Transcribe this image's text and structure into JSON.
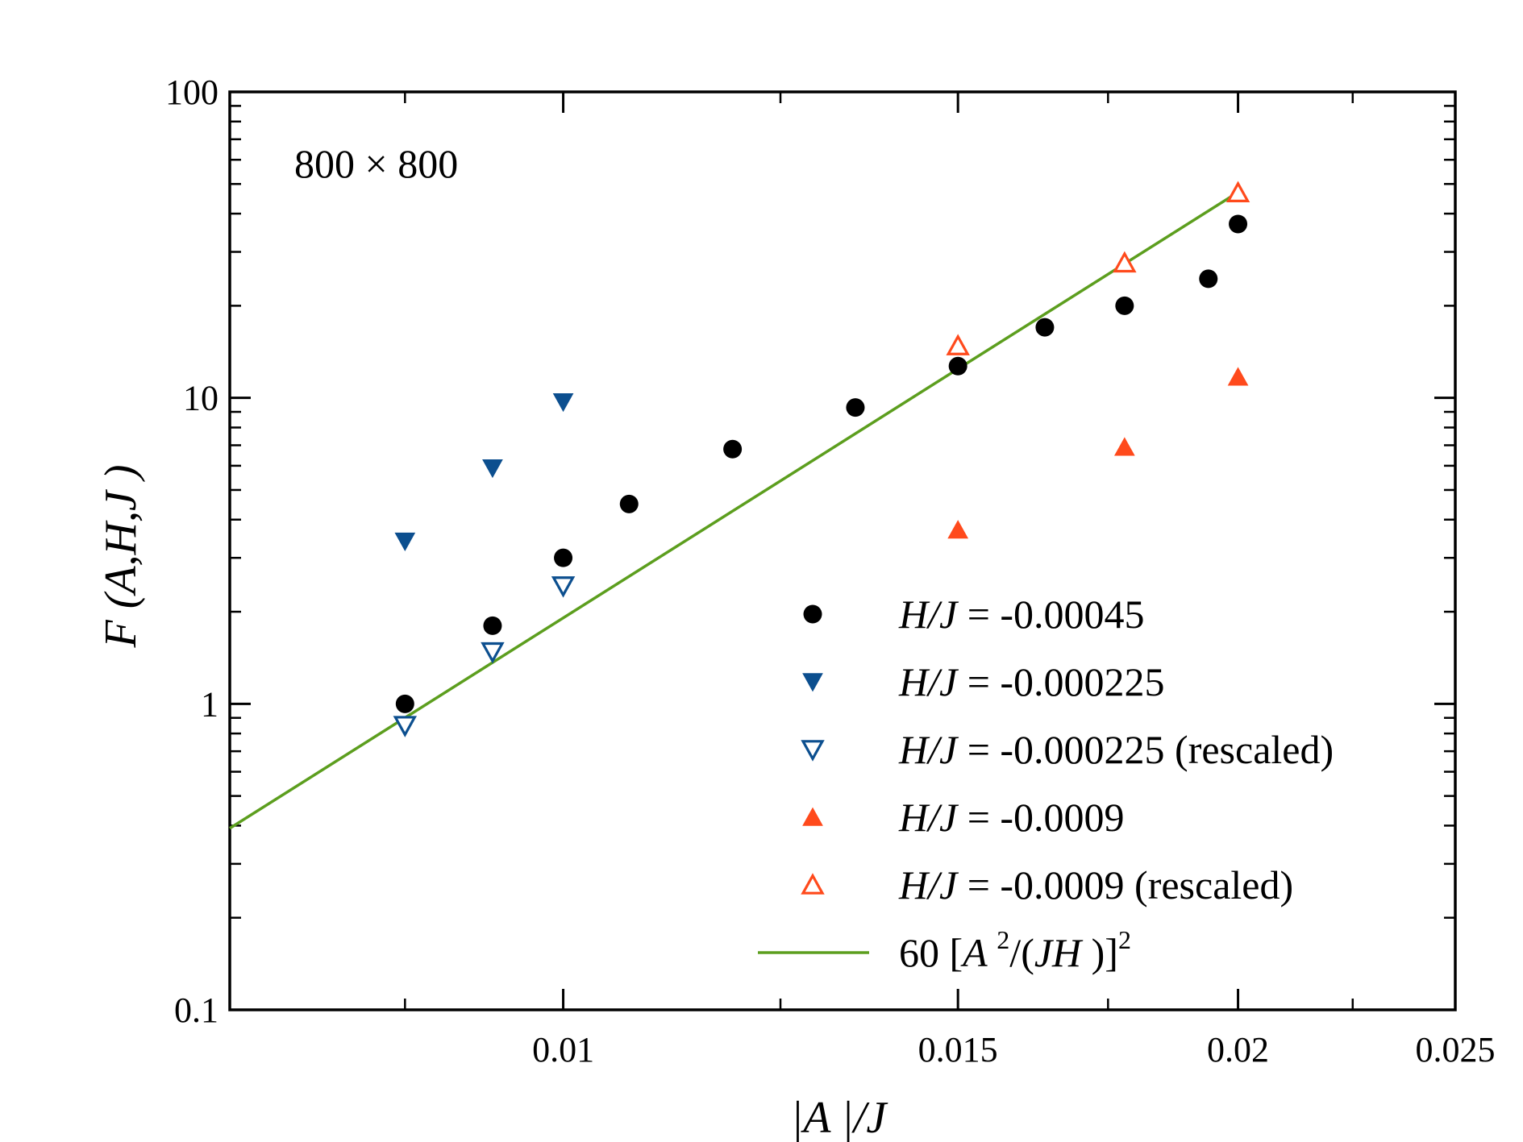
{
  "chart_data": {
    "type": "scatter",
    "title": "",
    "annotation": "800 × 800",
    "xlabel": "|A |/J",
    "ylabel": "F (A,H,J )",
    "xscale": "log",
    "yscale": "log",
    "xlim": [
      0.0071,
      0.025
    ],
    "ylim": [
      0.1,
      100
    ],
    "x_ticks": [
      {
        "value": 0.01,
        "label": "0.01"
      },
      {
        "value": 0.015,
        "label": "0.015"
      },
      {
        "value": 0.02,
        "label": "0.02"
      },
      {
        "value": 0.025,
        "label": "0.025"
      }
    ],
    "y_ticks": [
      {
        "value": 0.1,
        "label": "0.1"
      },
      {
        "value": 1,
        "label": "1"
      },
      {
        "value": 10,
        "label": "10"
      },
      {
        "value": 100,
        "label": "100"
      }
    ],
    "legend_position": "lower-right",
    "series": [
      {
        "name": "H/J = -0.00045",
        "label_italic": "H/J",
        "label_rest": " = -0.00045",
        "marker": "circle-filled",
        "color": "#000000",
        "x": [
          0.0085,
          0.0093,
          0.01,
          0.0107,
          0.0119,
          0.0135,
          0.015,
          0.0164,
          0.0178,
          0.0194,
          0.02
        ],
        "y": [
          1.0,
          1.8,
          3.0,
          4.5,
          6.8,
          9.3,
          12.7,
          17.0,
          20.0,
          24.5,
          37.0
        ]
      },
      {
        "name": "H/J = -0.000225",
        "label_italic": "H/J",
        "label_rest": " = -0.000225",
        "marker": "triangle-down-filled",
        "color": "#0c4f8f",
        "x": [
          0.0085,
          0.0093,
          0.01
        ],
        "y": [
          3.4,
          5.9,
          9.7
        ]
      },
      {
        "name": "H/J = -0.000225 (rescaled)",
        "label_italic": "H/J",
        "label_rest": " = -0.000225 (rescaled)",
        "marker": "triangle-down-open",
        "color": "#0c4f8f",
        "x": [
          0.0085,
          0.0093,
          0.01
        ],
        "y": [
          0.85,
          1.48,
          2.43
        ]
      },
      {
        "name": "H/J = -0.0009",
        "label_italic": "H/J",
        "label_rest": " = -0.0009",
        "marker": "triangle-up-filled",
        "color": "#ff4a1c",
        "x": [
          0.015,
          0.0178,
          0.02
        ],
        "y": [
          3.7,
          6.9,
          11.7
        ]
      },
      {
        "name": "H/J = -0.0009 (rescaled)",
        "label_italic": "H/J",
        "label_rest": " = -0.0009 (rescaled)",
        "marker": "triangle-up-open",
        "color": "#ff4a1c",
        "x": [
          0.015,
          0.0178,
          0.02
        ],
        "y": [
          14.8,
          27.6,
          46.8
        ]
      }
    ],
    "fit_line": {
      "name": "60 [A 2/(JH )]2",
      "label_prefix": "60 [",
      "label_A": "A ",
      "label_sup1": "2",
      "label_mid": "/(",
      "label_JH": "JH ",
      "label_close": ")]",
      "label_sup2": "2",
      "color": "#5c9e1e",
      "x": [
        0.0071,
        0.02
      ],
      "y": [
        0.392,
        47.0
      ]
    }
  }
}
